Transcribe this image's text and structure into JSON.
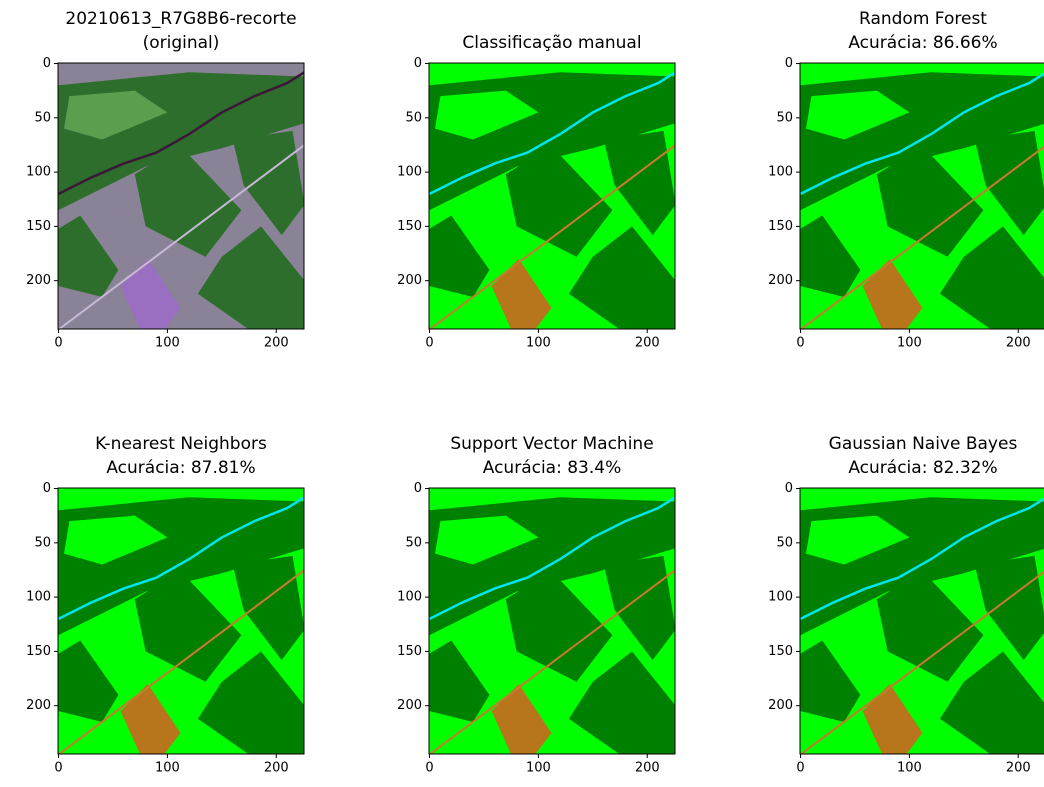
{
  "chart_data": [
    {
      "type": "image",
      "title": "20210613_R7G8B6-recorte",
      "subtitle": "(original)",
      "style": "original",
      "xlim": [
        -0.5,
        225.5
      ],
      "ylim": [
        244.5,
        -0.5
      ],
      "xticks": [
        0,
        100,
        200
      ],
      "yticks": [
        0,
        50,
        100,
        150,
        200
      ]
    },
    {
      "type": "image",
      "title": "Classificação manual",
      "style": "classified",
      "xlim": [
        -0.5,
        225.5
      ],
      "ylim": [
        244.5,
        -0.5
      ],
      "xticks": [
        0,
        100,
        200
      ],
      "yticks": [
        0,
        50,
        100,
        150,
        200
      ]
    },
    {
      "type": "image",
      "title": "Random Forest",
      "subtitle": "Acurácia: 86.66%",
      "style": "classified",
      "xlim": [
        -0.5,
        225.5
      ],
      "ylim": [
        244.5,
        -0.5
      ],
      "xticks": [
        0,
        100,
        200
      ],
      "yticks": [
        0,
        50,
        100,
        150,
        200
      ]
    },
    {
      "type": "image",
      "title": "K-nearest Neighbors",
      "subtitle": "Acurácia: 87.81%",
      "style": "classified",
      "xlim": [
        -0.5,
        225.5
      ],
      "ylim": [
        244.5,
        -0.5
      ],
      "xticks": [
        0,
        100,
        200
      ],
      "yticks": [
        0,
        50,
        100,
        150,
        200
      ]
    },
    {
      "type": "image",
      "title": "Support Vector Machine",
      "subtitle": "Acurácia: 83.4%",
      "style": "classified",
      "xlim": [
        -0.5,
        225.5
      ],
      "ylim": [
        244.5,
        -0.5
      ],
      "xticks": [
        0,
        100,
        200
      ],
      "yticks": [
        0,
        50,
        100,
        150,
        200
      ]
    },
    {
      "type": "image",
      "title": "Gaussian Naive Bayes",
      "subtitle": "Acurácia: 82.32%",
      "style": "classified",
      "xlim": [
        -0.5,
        225.5
      ],
      "ylim": [
        244.5,
        -0.5
      ],
      "xticks": [
        0,
        100,
        200
      ],
      "yticks": [
        0,
        50,
        100,
        150,
        200
      ]
    }
  ]
}
